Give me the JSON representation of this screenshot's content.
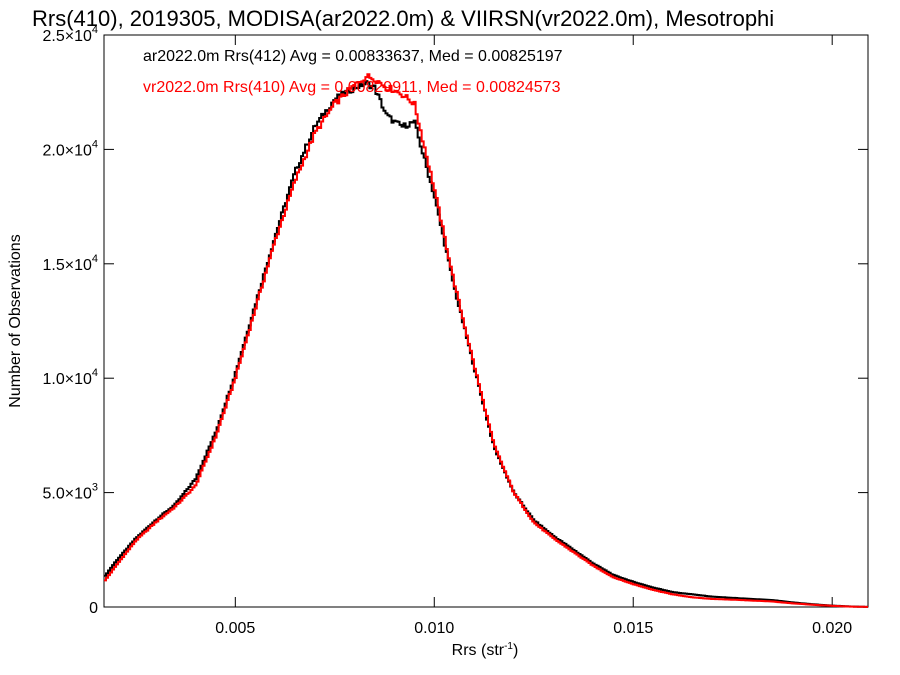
{
  "chart_data": {
    "type": "line",
    "title": "Rrs(410), 2019305, MODISA(ar2022.0m) & VIIRSN(vr2022.0m), Mesotrophi",
    "xlabel": "Rrs (str",
    "xlabel_exp": "-1",
    "xlabel_close": ")",
    "ylabel": "Number of Observations",
    "xlim": [
      0.0017,
      0.0209
    ],
    "ylim": [
      0,
      25000
    ],
    "x_ticks": [
      {
        "value": 0.005,
        "label": "0.005"
      },
      {
        "value": 0.01,
        "label": "0.010"
      },
      {
        "value": 0.015,
        "label": "0.015"
      },
      {
        "value": 0.02,
        "label": "0.020"
      }
    ],
    "y_ticks": [
      {
        "value": 0,
        "mant": "0",
        "exp": ""
      },
      {
        "value": 5000,
        "mant": "5.0×10",
        "exp": "3"
      },
      {
        "value": 10000,
        "mant": "1.0×10",
        "exp": "4"
      },
      {
        "value": 15000,
        "mant": "1.5×10",
        "exp": "4"
      },
      {
        "value": 20000,
        "mant": "2.0×10",
        "exp": "4"
      },
      {
        "value": 25000,
        "mant": "2.5×10",
        "exp": "4"
      }
    ],
    "legend_placement": "top-left",
    "series": [
      {
        "name": "ar2022.0m Rrs(412) Avg = 0.00833637, Med = 0.00825197",
        "color": "#000000",
        "x": [
          0.0017,
          0.002,
          0.0025,
          0.003,
          0.0035,
          0.004,
          0.0045,
          0.005,
          0.0055,
          0.006,
          0.0065,
          0.007,
          0.0075,
          0.008,
          0.0083,
          0.0085,
          0.0088,
          0.009,
          0.0092,
          0.0095,
          0.01,
          0.0105,
          0.011,
          0.0115,
          0.012,
          0.0125,
          0.013,
          0.0135,
          0.014,
          0.0145,
          0.015,
          0.0155,
          0.016,
          0.0165,
          0.017,
          0.0175,
          0.018,
          0.0185,
          0.019,
          0.0195,
          0.02,
          0.0205,
          0.0209
        ],
        "y": [
          1300,
          2000,
          3000,
          3800,
          4500,
          5600,
          7600,
          10200,
          13200,
          16200,
          19000,
          21000,
          22200,
          22700,
          22900,
          22700,
          21500,
          21200,
          21000,
          21200,
          18000,
          14000,
          10500,
          7000,
          5000,
          3800,
          3100,
          2500,
          1900,
          1400,
          1100,
          850,
          650,
          550,
          450,
          400,
          350,
          300,
          200,
          120,
          60,
          20,
          5
        ]
      },
      {
        "name": "vr2022.0m Rrs(410) Avg = 0.00829911, Med = 0.00824573",
        "color": "#ff0000",
        "x": [
          0.0017,
          0.002,
          0.0025,
          0.003,
          0.0035,
          0.004,
          0.0045,
          0.005,
          0.0055,
          0.006,
          0.0065,
          0.007,
          0.0075,
          0.008,
          0.0083,
          0.0085,
          0.0088,
          0.009,
          0.0092,
          0.0095,
          0.01,
          0.0105,
          0.011,
          0.0115,
          0.012,
          0.0125,
          0.013,
          0.0135,
          0.014,
          0.0145,
          0.015,
          0.0155,
          0.016,
          0.0165,
          0.017,
          0.0175,
          0.018,
          0.0185,
          0.019,
          0.0195,
          0.02,
          0.0205,
          0.0209
        ],
        "y": [
          1100,
          1800,
          2900,
          3700,
          4400,
          5300,
          7400,
          10000,
          13000,
          16000,
          18600,
          20700,
          22000,
          22800,
          23200,
          23100,
          22700,
          22600,
          22400,
          22000,
          18300,
          14200,
          10600,
          7100,
          5000,
          3700,
          3000,
          2400,
          1800,
          1300,
          1000,
          750,
          550,
          420,
          350,
          320,
          280,
          240,
          160,
          100,
          50,
          15,
          5
        ]
      }
    ]
  }
}
